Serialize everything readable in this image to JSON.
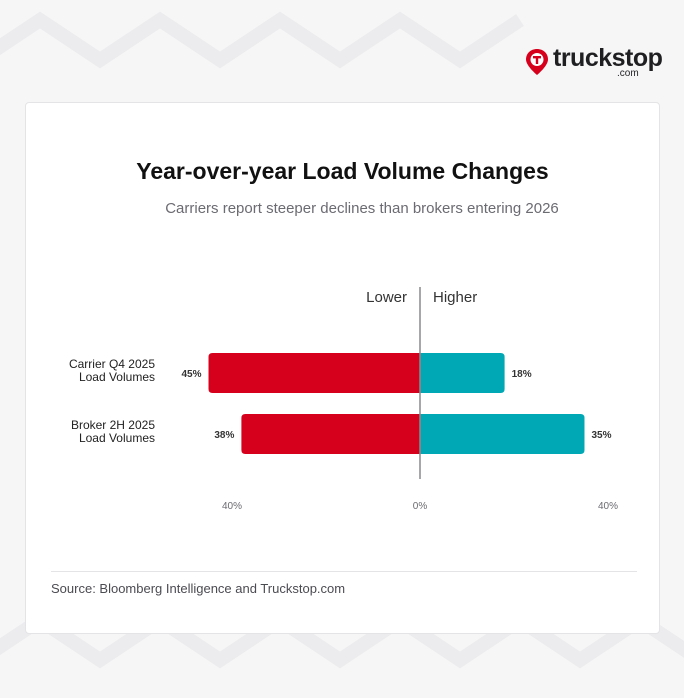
{
  "brand": {
    "wordmark": "truckstop",
    "suffix": ".com"
  },
  "chart_data": {
    "type": "bar",
    "orientation": "horizontal-diverging",
    "title": "Year-over-year Load Volume Changes",
    "subtitle": "Carriers report steeper declines than brokers entering 2026",
    "side_labels": {
      "left": "Lower",
      "right": "Higher"
    },
    "categories": [
      "Carrier Q4 2025\nLoad Volumes",
      "Broker 2H 2025\nLoad Volumes"
    ],
    "series": [
      {
        "name": "Lower",
        "values": [
          45,
          38
        ],
        "labels": [
          "45%",
          "38%"
        ],
        "color": "#d7001c"
      },
      {
        "name": "Higher",
        "values": [
          18,
          35
        ],
        "labels": [
          "18%",
          "35%"
        ],
        "color": "#00a8b5"
      }
    ],
    "xlim": [
      -40,
      40
    ],
    "ticks": [
      {
        "value": -40,
        "label": "40%"
      },
      {
        "value": 0,
        "label": "0%"
      },
      {
        "value": 40,
        "label": "40%"
      }
    ],
    "grid": false,
    "legend": "none"
  },
  "source": "Source: Bloomberg Intelligence and Truckstop.com",
  "colors": {
    "negative": "#d7001c",
    "positive": "#00a8b5",
    "axis": "#8a8a8f"
  }
}
